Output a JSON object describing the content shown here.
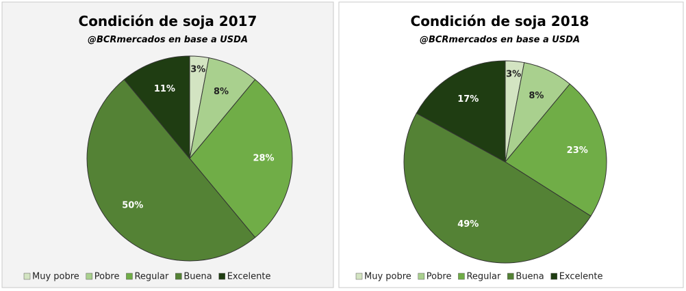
{
  "chart_data": [
    {
      "type": "pie",
      "title": "Condición de soja 2017",
      "subtitle": "@BCRmercados en base a USDA",
      "categories": [
        "Muy pobre",
        "Pobre",
        "Regular",
        "Buena",
        "Excelente"
      ],
      "values": [
        3,
        8,
        28,
        50,
        11
      ],
      "value_labels": [
        "3%",
        "8%",
        "28%",
        "50%",
        "11%"
      ],
      "colors": [
        "#d3e4c2",
        "#a9d08e",
        "#70ad47",
        "#548235",
        "#1f3d12"
      ]
    },
    {
      "type": "pie",
      "title": "Condición de soja 2018",
      "subtitle": "@BCRmercados en base a USDA",
      "categories": [
        "Muy pobre",
        "Pobre",
        "Regular",
        "Buena",
        "Excelente"
      ],
      "values": [
        3,
        8,
        23,
        49,
        17
      ],
      "value_labels": [
        "3%",
        "8%",
        "23%",
        "49%",
        "17%"
      ],
      "colors": [
        "#d3e4c2",
        "#a9d08e",
        "#70ad47",
        "#548235",
        "#1f3d12"
      ]
    }
  ]
}
